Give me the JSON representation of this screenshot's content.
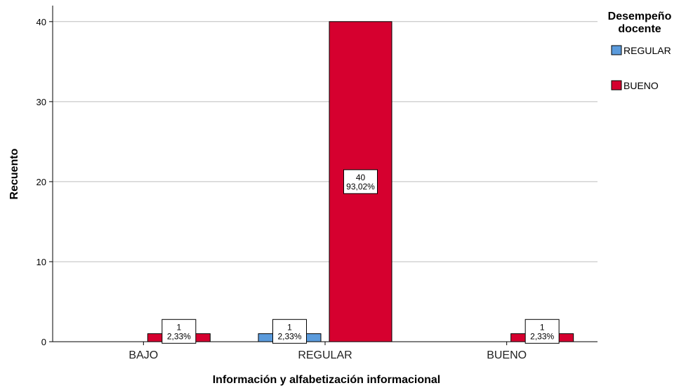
{
  "chart_data": {
    "type": "bar",
    "title": "",
    "xlabel": "Información y alfabetización informacional",
    "ylabel": "Recuento",
    "categories": [
      "BAJO",
      "REGULAR",
      "BUENO"
    ],
    "ylim": [
      0,
      42
    ],
    "yticks": [
      0,
      10,
      20,
      30,
      40
    ],
    "grid": true,
    "legend": {
      "title_lines": [
        "Desempeño",
        "docente"
      ],
      "placement": "top-right"
    },
    "series": [
      {
        "name": "REGULAR",
        "color": "#5b9bdc",
        "values": [
          0,
          1,
          0
        ],
        "labels": [
          null,
          [
            "1",
            "2,33%"
          ],
          null
        ]
      },
      {
        "name": "BUENO",
        "color": "#d6002f",
        "values": [
          1,
          40,
          1
        ],
        "labels": [
          [
            "1",
            "2,33%"
          ],
          [
            "40",
            "93,02%"
          ],
          [
            "1",
            "2,33%"
          ]
        ]
      }
    ]
  }
}
